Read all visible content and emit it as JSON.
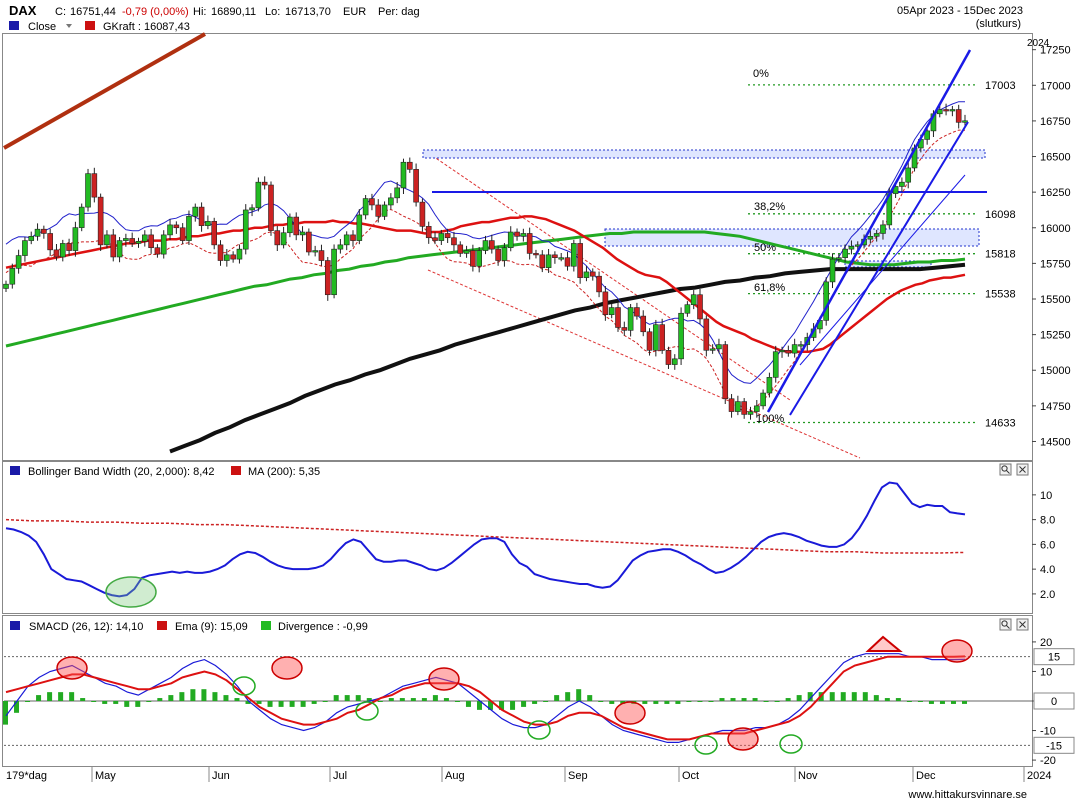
{
  "header": {
    "symbol": "DAX",
    "close_label": "C:",
    "close": "16751,44",
    "change": "-0,79 (0,00%)",
    "high_label": "Hi:",
    "high": "16890,11",
    "low_label": "Lo:",
    "low": "16713,70",
    "currency": "EUR",
    "period": "Per: dag",
    "date_range": "05Apr 2023 - 15Dec 2023",
    "mode": "(slutkurs)",
    "legend_close": "Close",
    "legend_gkraft": "GKraft : 16087,43"
  },
  "colors": {
    "up": "#22bb22",
    "down": "#cc2222",
    "ma_red": "#dd1111",
    "ma_green": "#22aa22",
    "ma_black": "#111111",
    "trend_brown": "#b03010",
    "channel_blue": "#1a1ae6",
    "dotted_green": "#229922"
  },
  "footer": {
    "period_count": "179*dag",
    "watermark": "www.hittakursvinnare.se"
  },
  "chart_data": [
    {
      "type": "candlestick",
      "title": "DAX",
      "x_months": [
        "May",
        "Jun",
        "Jul",
        "Aug",
        "Sep",
        "Oct",
        "Nov",
        "Dec",
        "2024"
      ],
      "y_ticks": [
        14500,
        14750,
        15000,
        15250,
        15500,
        15750,
        16000,
        16250,
        16500,
        16750,
        17000,
        17250
      ],
      "ylim": [
        14370,
        17360
      ],
      "year_label": "2024",
      "closes": [
        15604,
        15715,
        15805,
        15910,
        15940,
        15990,
        15960,
        15845,
        15795,
        15890,
        15840,
        16001,
        16145,
        16380,
        16215,
        15880,
        15950,
        15795,
        15910,
        15925,
        15890,
        15905,
        15950,
        15860,
        15815,
        15950,
        16020,
        16000,
        15910,
        16080,
        16145,
        16015,
        16045,
        15880,
        15770,
        15810,
        15780,
        15850,
        16125,
        16140,
        16320,
        16300,
        15980,
        15880,
        15965,
        16075,
        15950,
        15970,
        15830,
        15840,
        15770,
        15530,
        15850,
        15880,
        15950,
        15910,
        16090,
        16205,
        16160,
        16080,
        16160,
        16210,
        16280,
        16460,
        16410,
        16180,
        16010,
        15930,
        15910,
        15960,
        15930,
        15880,
        15820,
        15840,
        15730,
        15840,
        15910,
        15850,
        15770,
        15860,
        15970,
        15940,
        15960,
        15820,
        15810,
        15720,
        15810,
        15790,
        15790,
        15730,
        15890,
        15650,
        15690,
        15660,
        15550,
        15390,
        15440,
        15300,
        15280,
        15440,
        15380,
        15270,
        15140,
        15320,
        15140,
        15040,
        15080,
        15400,
        15460,
        15530,
        15360,
        15140,
        15150,
        15180,
        14800,
        14710,
        14780,
        14690,
        14710,
        14750,
        14840,
        14950,
        15130,
        15140,
        15120,
        15180,
        15180,
        15230,
        15290,
        15350,
        15620,
        15780,
        15790,
        15850,
        15870,
        15880,
        15920,
        15940,
        15960,
        16020,
        16240,
        16290,
        16320,
        16420,
        16560,
        16620,
        16680,
        16800,
        16830,
        16820,
        16830,
        16740,
        16751
      ],
      "ema20": [
        15720,
        15730,
        15740,
        15750,
        15760,
        15770,
        15780,
        15790,
        15800,
        15810,
        15820,
        15830,
        15840,
        15850,
        15860,
        15870,
        15880,
        15890,
        15890,
        15900,
        15910,
        15910,
        15910,
        15920,
        15920,
        15930,
        15940,
        15940,
        15950,
        15960,
        15960,
        15970,
        15980,
        15980,
        15990,
        16000,
        16000,
        16010,
        16020,
        16020,
        16030,
        16030,
        16040,
        16040,
        16040,
        16040,
        16050,
        16040,
        16040,
        16030,
        16030,
        16020,
        16010,
        16000,
        15990,
        15980,
        15980,
        15980,
        15970,
        15960,
        15970,
        15970,
        15980,
        15990,
        16010,
        16020,
        16030,
        16040,
        16040,
        16050,
        16060,
        16070,
        16070,
        16080,
        16080,
        16070,
        16060,
        16040,
        16020,
        16000,
        15980,
        15950,
        15920,
        15890,
        15860,
        15820,
        15780,
        15750,
        15720,
        15690,
        15670,
        15660,
        15650,
        15620,
        15580,
        15540,
        15500,
        15460,
        15420,
        15380,
        15340,
        15310,
        15290,
        15270,
        15250,
        15220,
        15200,
        15180,
        15160,
        15140,
        15130,
        15130,
        15130,
        15130,
        15140,
        15150,
        15180,
        15220,
        15260,
        15300,
        15340,
        15380,
        15420,
        15460,
        15500,
        15530,
        15560,
        15580,
        15600,
        15610,
        15630,
        15640,
        15650,
        15650,
        15660,
        15670
      ],
      "ma50": [
        15170,
        15190,
        15210,
        15230,
        15250,
        15270,
        15290,
        15310,
        15330,
        15350,
        15370,
        15390,
        15410,
        15430,
        15450,
        15470,
        15490,
        15510,
        15530,
        15550,
        15570,
        15590,
        15600,
        15620,
        15640,
        15650,
        15670,
        15680,
        15700,
        15710,
        15730,
        15740,
        15760,
        15770,
        15790,
        15800,
        15810,
        15820,
        15830,
        15840,
        15850,
        15860,
        15870,
        15880,
        15890,
        15900,
        15910,
        15920,
        15930,
        15940,
        15950,
        15960,
        15960,
        15970,
        15970,
        15970,
        15970,
        15970,
        15970,
        15970,
        15960,
        15950,
        15940,
        15920,
        15900,
        15880,
        15860,
        15840,
        15820,
        15800,
        15780,
        15760,
        15750,
        15740,
        15740,
        15740,
        15750,
        15760,
        15760,
        15770,
        15770,
        15780
      ],
      "ma200": [
        14430,
        14470,
        14510,
        14560,
        14600,
        14650,
        14690,
        14730,
        14770,
        14820,
        14860,
        14900,
        14930,
        14970,
        15000,
        15040,
        15080,
        15110,
        15140,
        15180,
        15210,
        15240,
        15270,
        15300,
        15330,
        15360,
        15390,
        15420,
        15440,
        15470,
        15490,
        15510,
        15530,
        15550,
        15570,
        15580,
        15600,
        15620,
        15630,
        15650,
        15660,
        15680,
        15690,
        15700,
        15710,
        15710,
        15710,
        15710,
        15710,
        15710,
        15710,
        15720,
        15730,
        15740
      ],
      "channel_levels": [
        {
          "label": "0%",
          "value": 17003
        },
        {
          "label": "38,2%",
          "value": 16098
        },
        {
          "label": "50%",
          "value": 15818
        },
        {
          "label": "61,8%",
          "value": 15538
        },
        {
          "label": "100%",
          "value": 14633
        }
      ]
    },
    {
      "type": "line",
      "title": "Bollinger Band Width (20, 2,000): 8,42",
      "legend_ma": "MA (200): 5,35",
      "y_ticks": [
        2.0,
        4.0,
        6.0,
        8.0,
        10
      ],
      "y_tick_labels": [
        "2.0",
        "4.0",
        "6.0",
        "8.0",
        "10"
      ],
      "ylim": [
        0.7,
        11.2
      ],
      "series": [
        {
          "name": "Bollinger Band Width (20, 2,000)",
          "values": [
            7.3,
            7.2,
            7.0,
            6.7,
            6.2,
            5.2,
            4.0,
            3.6,
            3.2,
            3.1,
            3.0,
            2.7,
            2.4,
            2.1,
            1.9,
            1.8,
            1.9,
            2.4,
            3.3,
            3.5,
            3.6,
            3.7,
            3.8,
            3.7,
            3.8,
            3.7,
            3.7,
            3.8,
            4.0,
            4.3,
            4.8,
            5.2,
            5.4,
            5.3,
            5.0,
            4.6,
            4.3,
            4.1,
            4.0,
            4.0,
            4.0,
            4.1,
            4.3,
            4.8,
            5.5,
            6.1,
            6.4,
            6.2,
            5.5,
            4.8,
            4.6,
            4.6,
            4.7,
            4.7,
            4.5,
            4.3,
            4.0,
            3.9,
            4.1,
            4.5,
            5.0,
            5.5,
            6.0,
            6.4,
            6.5,
            6.5,
            6.2,
            5.2,
            4.5,
            4.2,
            3.6,
            3.4,
            3.2,
            3.1,
            3.0,
            2.9,
            2.8,
            2.8,
            2.6,
            2.5,
            2.6,
            3.1,
            3.9,
            4.7,
            5.1,
            5.4,
            5.5,
            5.6,
            5.6,
            5.4,
            5.1,
            4.7,
            4.4,
            4.0,
            3.7,
            3.8,
            4.1,
            4.5,
            5.0,
            5.6,
            6.2,
            6.6,
            6.8,
            6.9,
            6.8,
            6.6,
            6.3,
            6.1,
            5.9,
            5.8,
            5.8,
            6.0,
            6.5,
            7.3,
            8.3,
            9.5,
            10.6,
            11.0,
            10.9,
            10.1,
            9.3,
            9.0,
            9.2,
            9.1,
            9.1,
            8.6,
            8.5,
            8.42
          ]
        },
        {
          "name": "MA (200)",
          "values": [
            8.0,
            7.9,
            7.9,
            7.8,
            7.8,
            7.7,
            7.7,
            7.6,
            7.6,
            7.5,
            7.4,
            7.3,
            7.2,
            7.1,
            7.0,
            6.9,
            6.8,
            6.7,
            6.6,
            6.5,
            6.4,
            6.3,
            6.2,
            6.1,
            6.0,
            5.9,
            5.8,
            5.7,
            5.6,
            5.5,
            5.4,
            5.4,
            5.3,
            5.3,
            5.3,
            5.35
          ]
        }
      ]
    },
    {
      "type": "line",
      "title": "SMACD (26, 12): 14,10",
      "legend_ema": "Ema (9): 15,09",
      "legend_div": "Divergence : -0,99",
      "y_ticks": [
        -20,
        -10,
        0,
        10,
        20
      ],
      "y_tick_labels": [
        "-20",
        "-10",
        "0",
        "10",
        "20"
      ],
      "ylim": [
        -22,
        22
      ],
      "reference_levels": [
        15,
        0,
        -15
      ],
      "series": [
        {
          "name": "SMACD (26, 12)",
          "values": [
            -5,
            0,
            5,
            8,
            10,
            11,
            12,
            10,
            8,
            6,
            5,
            3,
            2,
            4,
            6,
            8,
            11,
            13,
            14,
            12,
            9,
            5,
            0,
            -3,
            -6,
            -8,
            -9,
            -10,
            -9,
            -7,
            -4,
            -2,
            -1,
            0,
            1,
            3,
            5,
            6,
            7,
            8,
            7,
            6,
            3,
            0,
            -3,
            -6,
            -8,
            -9,
            -9,
            -8,
            -5,
            -2,
            0,
            -2,
            -5,
            -8,
            -10,
            -11,
            -12,
            -13,
            -14,
            -14,
            -13,
            -12,
            -11,
            -10,
            -10,
            -10,
            -9,
            -9,
            -8,
            -6,
            -3,
            1,
            5,
            9,
            13,
            15,
            16,
            16,
            16,
            16,
            15,
            15,
            14,
            14,
            14,
            14.1
          ]
        },
        {
          "name": "Ema (9)",
          "values": [
            3,
            4,
            5,
            6,
            7,
            8,
            9,
            9,
            8,
            7,
            6,
            5,
            4,
            4,
            5,
            6,
            8,
            9,
            10,
            9,
            7,
            4,
            1,
            -2,
            -4,
            -6,
            -7,
            -8,
            -8,
            -7,
            -6,
            -4,
            -3,
            -1,
            1,
            2,
            4,
            5,
            6,
            6,
            6,
            6,
            5,
            3,
            0,
            -3,
            -5,
            -7,
            -8,
            -8,
            -7,
            -5,
            -4,
            -4,
            -5,
            -7,
            -9,
            -10,
            -11,
            -12,
            -13,
            -13,
            -13,
            -12,
            -11,
            -11,
            -11,
            -11,
            -10,
            -9,
            -8,
            -7,
            -5,
            -2,
            2,
            6,
            10,
            12,
            13,
            14,
            15,
            15,
            15,
            15,
            15,
            15,
            15,
            15.09
          ]
        },
        {
          "name": "Divergence",
          "values": [
            -8,
            -4,
            0,
            2,
            3,
            3,
            3,
            1,
            0,
            -1,
            -1,
            -2,
            -2,
            0,
            1,
            2,
            3,
            4,
            4,
            3,
            2,
            1,
            -1,
            -1,
            -2,
            -2,
            -2,
            -2,
            -1,
            0,
            2,
            2,
            2,
            1,
            0,
            1,
            1,
            1,
            1,
            2,
            1,
            0,
            -2,
            -3,
            -3,
            -3,
            -3,
            -2,
            -1,
            0,
            2,
            3,
            4,
            2,
            0,
            -1,
            -1,
            -1,
            -1,
            -1,
            -1,
            -1,
            0,
            0,
            0,
            1,
            1,
            1,
            1,
            0,
            0,
            1,
            2,
            3,
            3,
            3,
            3,
            3,
            3,
            2,
            1,
            1,
            0,
            0,
            -1,
            -1,
            -1,
            -0.99
          ]
        }
      ]
    }
  ]
}
